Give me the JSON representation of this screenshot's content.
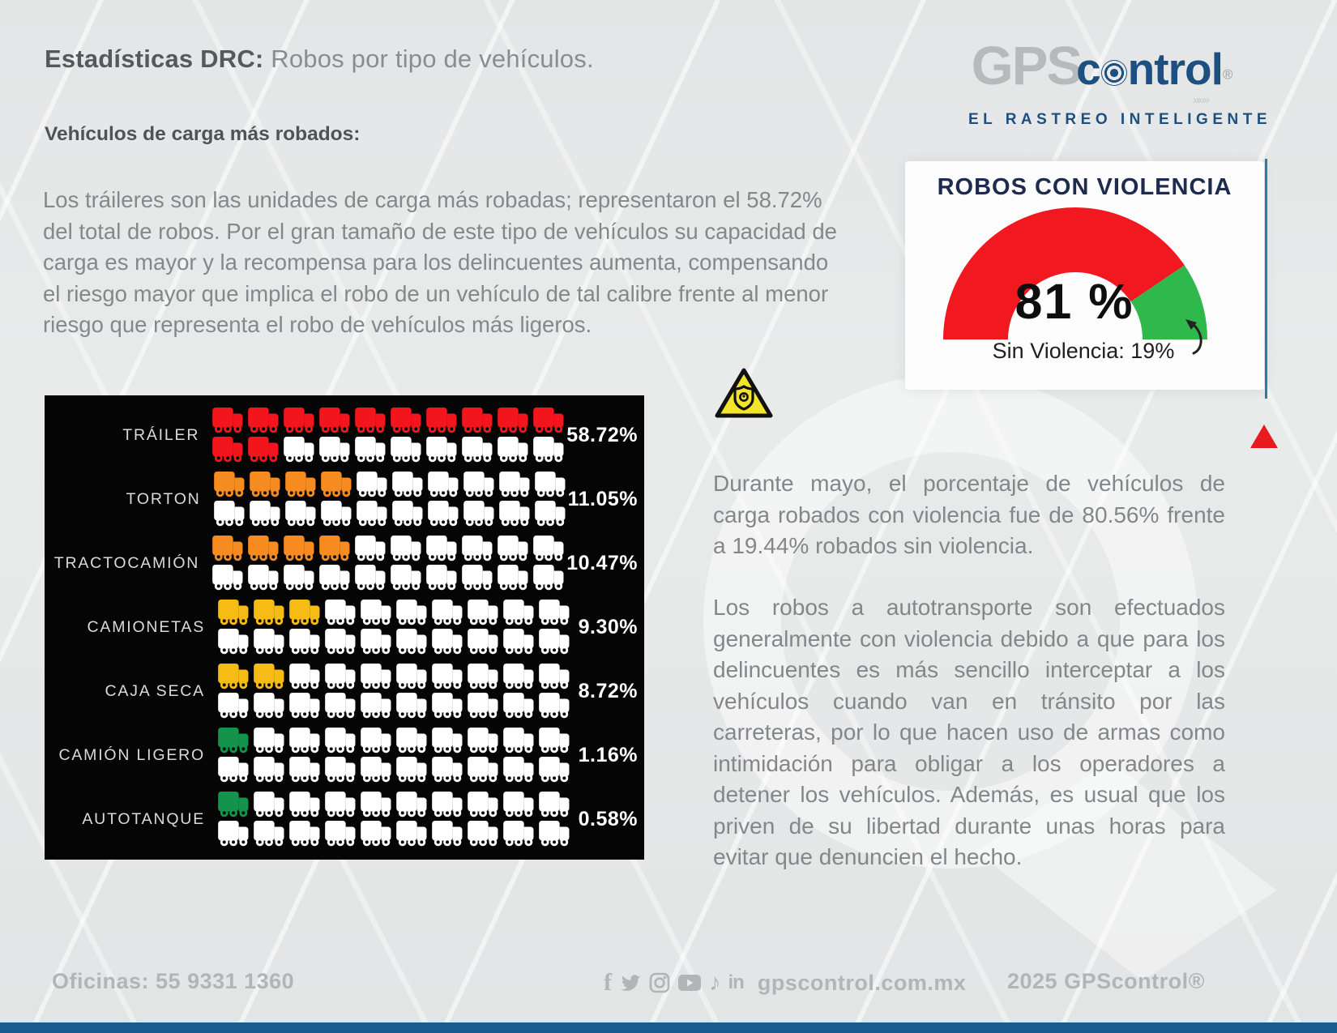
{
  "header": {
    "title_bold": "Estadísticas DRC:",
    "title_rest": " Robos por tipo de vehículos.",
    "subtitle": "Vehículos de carga más robados:"
  },
  "logo": {
    "gps": "GPS",
    "control_c": "c",
    "control_rest": "ntrol",
    "registered": "®",
    "arrows": "»»»",
    "tagline": "EL RASTREO INTELIGENTE"
  },
  "intro_paragraph": "Los tráileres son las unidades de carga más robadas; representaron el 58.72% del total de robos. Por el gran tamaño de este tipo de vehículos su capacidad de carga es mayor y la recompensa para los delincuentes aumenta, compensando el riesgo mayor que implica el robo de un vehículo de tal calibre frente al menor riesgo que representa el robo de vehículos más ligeros.",
  "gauge": {
    "title": "ROBOS CON VIOLENCIA",
    "value_pct": 81,
    "value_label": "81 %",
    "secondary_label": "Sin Violencia: 19%",
    "violent_color": "#f11820",
    "non_violent_color": "#2fb94d"
  },
  "chart_data": {
    "type": "pictograph-bar",
    "title": "Robos por tipo de vehículo de carga",
    "unit_icons_per_category": 20,
    "categories": [
      "TRÁILER",
      "TORTON",
      "TRACTOCAMIÓN",
      "CAMIONETAS",
      "CAJA SECA",
      "CAMIÓN LIGERO",
      "AUTOTANQUE"
    ],
    "values": [
      58.72,
      11.05,
      10.47,
      9.3,
      8.72,
      1.16,
      0.58
    ],
    "value_labels": [
      "58.72%",
      "11.05%",
      "10.47%",
      "9.30%",
      "8.72%",
      "1.16%",
      "0.58%"
    ],
    "filled_icons": [
      12,
      4,
      4,
      3,
      2,
      1,
      1
    ],
    "fill_colors": [
      "#f3151c",
      "#f68b1f",
      "#f68b1f",
      "#f7bb16",
      "#f7bb16",
      "#14934d",
      "#14934d"
    ],
    "empty_color": "#ffffff",
    "background": "#050505"
  },
  "violence_paragraph": "Durante mayo, el porcentaje de vehículos de carga robados con violencia fue de 80.56% frente a 19.44% robados sin violencia.",
  "body_paragraph": "Los robos a autotransporte son efectuados generalmente con violencia debido a que para los delincuentes es más sencillo interceptar a los vehículos cuando van en tránsito por las carreteras, por lo que hacen uso de armas como intimidación para obligar a los operadores a detener los vehículos. Además, es usual que los priven de su libertad durante unas horas para evitar que denuncien el hecho.",
  "footer": {
    "phone": "Oficinas: 55 9331 1360",
    "facebook": "f",
    "tiktok": "♪",
    "linkedin": "in",
    "website": "gpscontrol.com.mx",
    "copyright": "2025 GPScontrol®"
  }
}
